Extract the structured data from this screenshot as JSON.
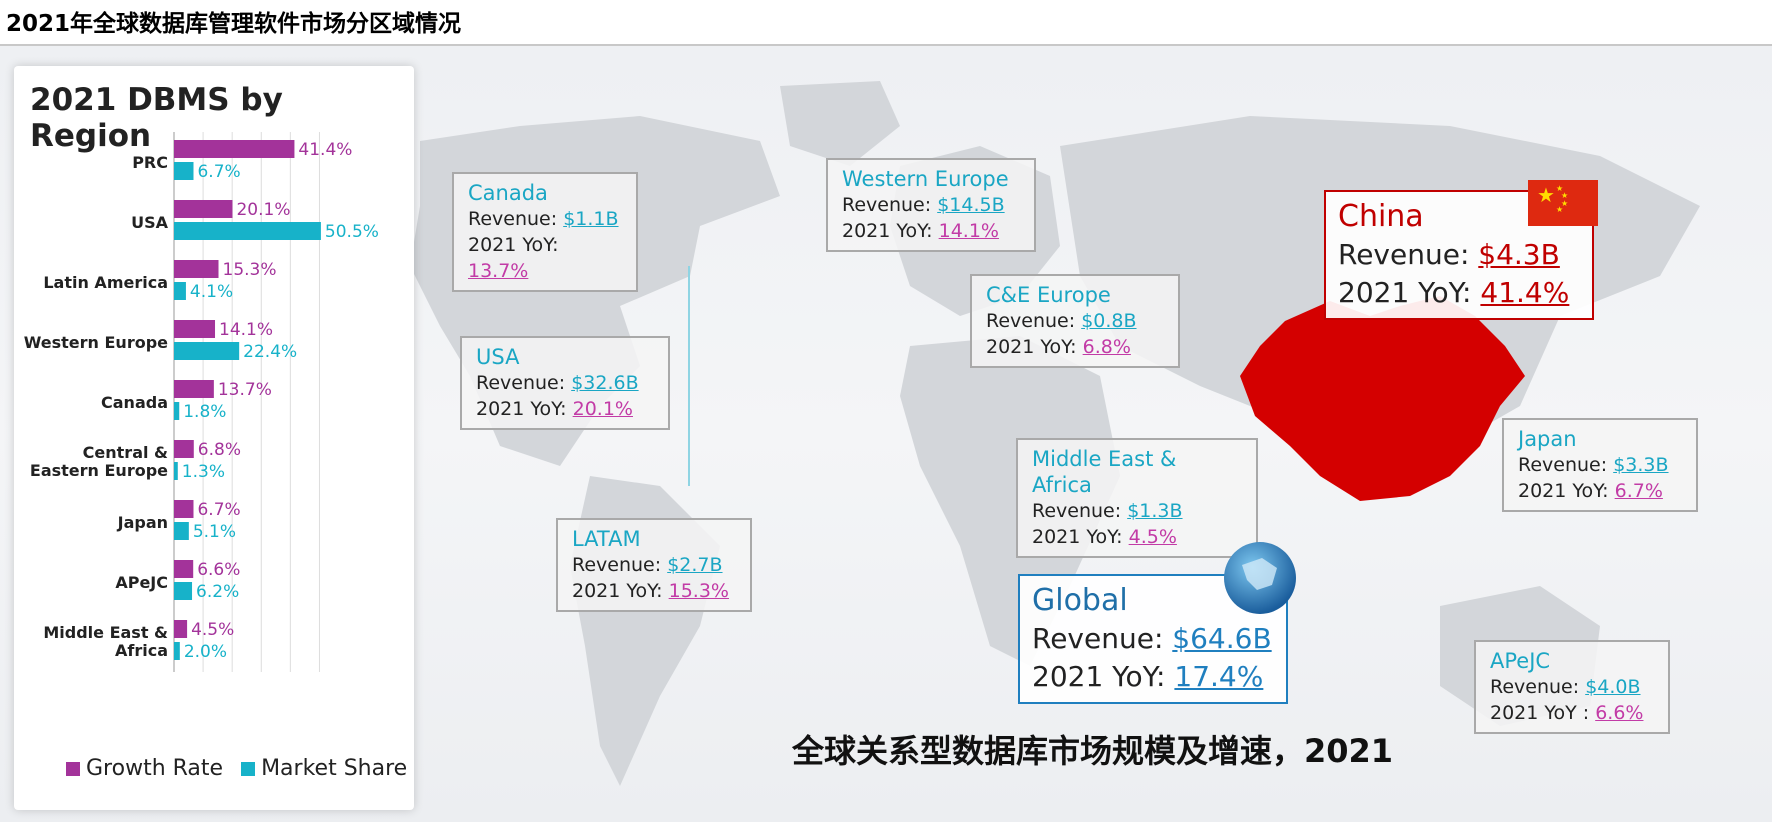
{
  "page_title": "2021年全球数据库管理软件市场分区域情况",
  "chart_data": {
    "type": "bar",
    "title": "2021 DBMS by Region",
    "categories": [
      "PRC",
      "USA",
      "Latin America",
      "Western Europe",
      "Canada",
      "Central & Eastern Europe",
      "Japan",
      "APeJC",
      "Middle East & Africa"
    ],
    "series": [
      {
        "name": "Growth Rate",
        "color": "#a3339a",
        "values": [
          41.4,
          20.1,
          15.3,
          14.1,
          13.7,
          6.8,
          6.7,
          6.6,
          4.5
        ],
        "labels": [
          "41.4%",
          "20.1%",
          "15.3%",
          "14.1%",
          "13.7%",
          "6.8%",
          "6.7%",
          "6.6%",
          "4.5%"
        ]
      },
      {
        "name": "Market Share",
        "color": "#17b2c9",
        "values": [
          6.7,
          50.5,
          4.1,
          22.4,
          1.8,
          1.3,
          5.1,
          6.2,
          2.0
        ],
        "labels": [
          "6.7%",
          "50.5%",
          "4.1%",
          "22.4%",
          "1.8%",
          "1.3%",
          "5.1%",
          "6.2%",
          "2.0%"
        ]
      }
    ],
    "xlim": [
      0,
      55
    ],
    "grid": true,
    "legend": "bottom"
  },
  "labels": {
    "revenue": "Revenue: ",
    "yoy": "2021 YoY: ",
    "yoy_colon": "2021 YoY : "
  },
  "regions": {
    "canada": {
      "name": "Canada",
      "revenue": "$1.1B",
      "yoy": "13.7%"
    },
    "western_europe": {
      "name": "Western Europe",
      "revenue": "$14.5B",
      "yoy": "14.1%"
    },
    "china": {
      "name": "China",
      "revenue": "$4.3B",
      "yoy": "41.4%"
    },
    "ce_europe": {
      "name": "C&E Europe",
      "revenue": "$0.8B",
      "yoy": "6.8%"
    },
    "usa": {
      "name": "USA",
      "revenue": "$32.6B",
      "yoy": "20.1%"
    },
    "mea": {
      "name": "Middle East & Africa",
      "revenue": "$1.3B",
      "yoy": "4.5%"
    },
    "japan": {
      "name": "Japan",
      "revenue": "$3.3B",
      "yoy": "6.7%"
    },
    "latam": {
      "name": "LATAM",
      "revenue": "$2.7B",
      "yoy": "15.3%"
    },
    "global": {
      "name": "Global",
      "revenue": "$64.6B",
      "yoy": "17.4%"
    },
    "apejc": {
      "name": "APeJC",
      "revenue": "$4.0B",
      "yoy": "6.6%"
    }
  },
  "caption": "全球关系型数据库市场规模及增速，2021",
  "colors": {
    "china_red": "#d40000",
    "map_land": "#d3d6da"
  }
}
